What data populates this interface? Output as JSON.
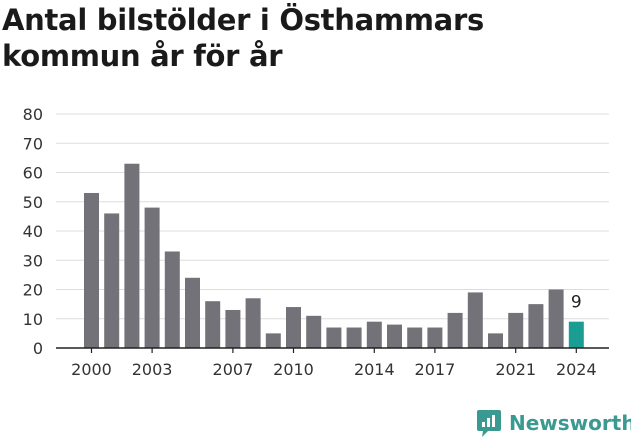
{
  "title": "Antal bilstölder i Östhammars kommun år för år",
  "brand": {
    "name": "Newsworthy",
    "icon": "newsworthy-logo-icon"
  },
  "colors": {
    "bar": "#737278",
    "highlight": "#1a9e93",
    "grid": "#dddddd",
    "axis": "#222222"
  },
  "chart_data": {
    "type": "bar",
    "title": "Antal bilstölder i Östhammars kommun år för år",
    "xlabel": "",
    "ylabel": "",
    "categories": [
      2000,
      2001,
      2002,
      2003,
      2004,
      2005,
      2006,
      2007,
      2008,
      2009,
      2010,
      2011,
      2012,
      2013,
      2014,
      2015,
      2016,
      2017,
      2018,
      2019,
      2020,
      2021,
      2022,
      2023,
      2024
    ],
    "values": [
      53,
      46,
      63,
      48,
      33,
      24,
      16,
      13,
      17,
      5,
      14,
      11,
      7,
      7,
      9,
      8,
      7,
      7,
      12,
      19,
      5,
      12,
      15,
      20,
      9
    ],
    "ylim": [
      0,
      80
    ],
    "yticks": [
      0,
      10,
      20,
      30,
      40,
      50,
      60,
      70,
      80
    ],
    "xticks": [
      2000,
      2003,
      2007,
      2010,
      2014,
      2017,
      2021,
      2024
    ],
    "grid": true,
    "highlight_category": 2024,
    "highlight_label": "9"
  }
}
